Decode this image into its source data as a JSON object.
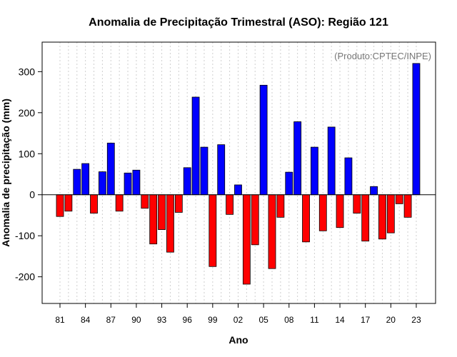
{
  "chart_data": {
    "type": "bar",
    "title": "Anomalia de Precipitação Trimestral (ASO): Região 121",
    "xlabel": "Ano",
    "ylabel": "Anomalia de precipitação (mm)",
    "credit": "(Produto:CPTEC/INPE)",
    "ylim": [
      -265,
      372
    ],
    "yticks": [
      -200,
      -100,
      0,
      100,
      200,
      300
    ],
    "ytick_labels": [
      "-200",
      "-100",
      "0",
      "100",
      "200",
      "300"
    ],
    "xtick_labels": [
      "81",
      "84",
      "87",
      "90",
      "93",
      "96",
      "99",
      "02",
      "05",
      "08",
      "11",
      "14",
      "17",
      "20",
      "23"
    ],
    "xtick_every": 3,
    "grid": "vertical-dotted",
    "positive_color": "#0000ff",
    "negative_color": "#ff0000",
    "categories": [
      "1981",
      "1982",
      "1983",
      "1984",
      "1985",
      "1986",
      "1987",
      "1988",
      "1989",
      "1990",
      "1991",
      "1992",
      "1993",
      "1994",
      "1995",
      "1996",
      "1997",
      "1998",
      "1999",
      "2000",
      "2001",
      "2002",
      "2003",
      "2004",
      "2005",
      "2006",
      "2007",
      "2008",
      "2009",
      "2010",
      "2011",
      "2012",
      "2013",
      "2014",
      "2015",
      "2016",
      "2017",
      "2018",
      "2019",
      "2020",
      "2021",
      "2022",
      "2023"
    ],
    "values": [
      -53,
      -40,
      62,
      76,
      -45,
      56,
      126,
      -40,
      53,
      60,
      -33,
      -120,
      -85,
      -140,
      -43,
      66,
      238,
      116,
      -175,
      122,
      -48,
      24,
      -218,
      -122,
      267,
      -180,
      -55,
      55,
      178,
      -115,
      116,
      -88,
      165,
      -80,
      90,
      -45,
      -113,
      20,
      -108,
      -93,
      -22,
      -55,
      320
    ]
  }
}
